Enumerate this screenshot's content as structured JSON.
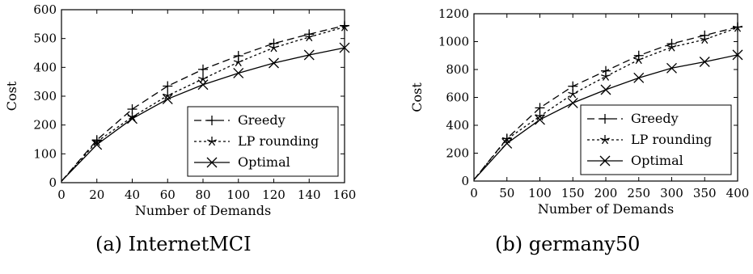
{
  "captions": [
    "(a) InternetMCI",
    "(b) germany50"
  ],
  "chart_data": [
    {
      "type": "line",
      "xlabel": "Number of Demands",
      "ylabel": "Cost",
      "xlim": [
        0,
        160
      ],
      "ylim": [
        0,
        600
      ],
      "xticks": [
        0,
        20,
        40,
        60,
        80,
        100,
        120,
        140,
        160
      ],
      "yticks": [
        0,
        100,
        200,
        300,
        400,
        500,
        600
      ],
      "grid": false,
      "legend_position": "lower-right",
      "x": [
        0,
        20,
        40,
        60,
        80,
        100,
        120,
        140,
        160
      ],
      "series": [
        {
          "name": "Greedy",
          "style": "dashed",
          "marker": "plus",
          "values": [
            5,
            148,
            255,
            335,
            393,
            440,
            483,
            515,
            545
          ]
        },
        {
          "name": "LP rounding",
          "style": "dotted",
          "marker": "star",
          "values": [
            5,
            142,
            228,
            302,
            360,
            418,
            468,
            505,
            540
          ]
        },
        {
          "name": "Optimal",
          "style": "solid",
          "marker": "x",
          "values": [
            5,
            132,
            222,
            290,
            340,
            380,
            415,
            443,
            468
          ]
        }
      ]
    },
    {
      "type": "line",
      "xlabel": "Number of Demands",
      "ylabel": "Cost",
      "xlim": [
        0,
        400
      ],
      "ylim": [
        0,
        1200
      ],
      "xticks": [
        0,
        50,
        100,
        150,
        200,
        250,
        300,
        350,
        400
      ],
      "yticks": [
        0,
        200,
        400,
        600,
        800,
        1000,
        1200
      ],
      "grid": false,
      "legend_position": "lower-right",
      "x": [
        0,
        50,
        100,
        150,
        200,
        250,
        300,
        350,
        400
      ],
      "series": [
        {
          "name": "Greedy",
          "style": "dashed",
          "marker": "plus",
          "values": [
            10,
            305,
            525,
            680,
            790,
            900,
            985,
            1045,
            1105
          ]
        },
        {
          "name": "LP rounding",
          "style": "dotted",
          "marker": "star",
          "values": [
            10,
            300,
            465,
            625,
            750,
            870,
            960,
            1015,
            1100
          ]
        },
        {
          "name": "Optimal",
          "style": "solid",
          "marker": "x",
          "values": [
            10,
            270,
            440,
            560,
            655,
            740,
            810,
            855,
            905
          ]
        }
      ]
    }
  ]
}
